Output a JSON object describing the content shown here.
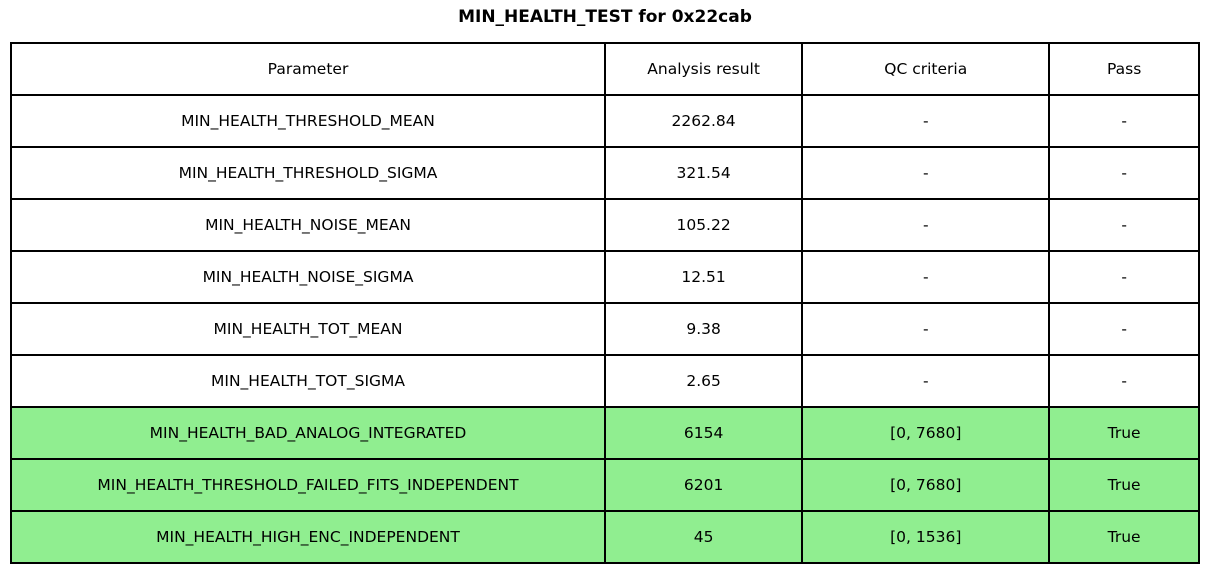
{
  "title": "MIN_HEALTH_TEST for 0x22cab",
  "chart_data": {
    "type": "table",
    "title": "MIN_HEALTH_TEST for 0x22cab",
    "columns": [
      "Parameter",
      "Analysis result",
      "QC criteria",
      "Pass"
    ],
    "rows": [
      {
        "parameter": "MIN_HEALTH_THRESHOLD_MEAN",
        "analysis_result": "2262.84",
        "qc_criteria": "-",
        "pass": "-",
        "highlight": false
      },
      {
        "parameter": "MIN_HEALTH_THRESHOLD_SIGMA",
        "analysis_result": "321.54",
        "qc_criteria": "-",
        "pass": "-",
        "highlight": false
      },
      {
        "parameter": "MIN_HEALTH_NOISE_MEAN",
        "analysis_result": "105.22",
        "qc_criteria": "-",
        "pass": "-",
        "highlight": false
      },
      {
        "parameter": "MIN_HEALTH_NOISE_SIGMA",
        "analysis_result": "12.51",
        "qc_criteria": "-",
        "pass": "-",
        "highlight": false
      },
      {
        "parameter": "MIN_HEALTH_TOT_MEAN",
        "analysis_result": "9.38",
        "qc_criteria": "-",
        "pass": "-",
        "highlight": false
      },
      {
        "parameter": "MIN_HEALTH_TOT_SIGMA",
        "analysis_result": "2.65",
        "qc_criteria": "-",
        "pass": "-",
        "highlight": false
      },
      {
        "parameter": "MIN_HEALTH_BAD_ANALOG_INTEGRATED",
        "analysis_result": "6154",
        "qc_criteria": "[0, 7680]",
        "pass": "True",
        "highlight": true
      },
      {
        "parameter": "MIN_HEALTH_THRESHOLD_FAILED_FITS_INDEPENDENT",
        "analysis_result": "6201",
        "qc_criteria": "[0, 7680]",
        "pass": "True",
        "highlight": true
      },
      {
        "parameter": "MIN_HEALTH_HIGH_ENC_INDEPENDENT",
        "analysis_result": "45",
        "qc_criteria": "[0, 1536]",
        "pass": "True",
        "highlight": true
      }
    ],
    "layout": {
      "legend": "none",
      "grid": "full-borders",
      "header_row": true
    },
    "colors": {
      "pass_row_bg": "#90ee90",
      "row_bg": "#ffffff",
      "border": "#000000",
      "text": "#000000"
    }
  }
}
